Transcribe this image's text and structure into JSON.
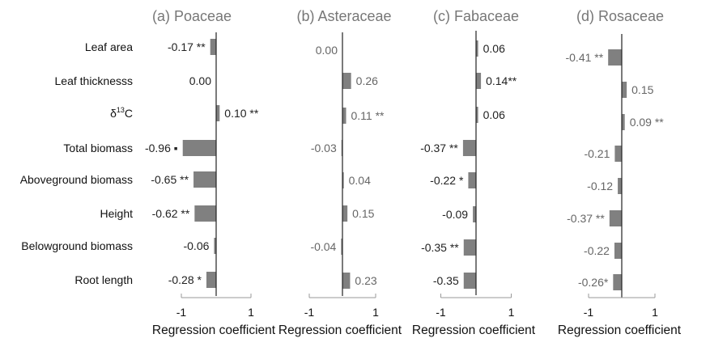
{
  "chart_data": {
    "type": "bar",
    "orientation": "horizontal",
    "categories": [
      "Leaf area",
      "Leaf thicknesss",
      "δ13C",
      "Total biomass",
      "Aboveground biomass",
      "Height",
      "Belowground biomass",
      "Root length"
    ],
    "category_display": {
      "δ13C": {
        "base": "δ",
        "sup": "13",
        "tail": "C"
      }
    },
    "bar_color": "#808080",
    "panels": [
      {
        "title": "(a) Poaceae",
        "xlabel": "Regression coefficient",
        "xlim": [
          -1,
          1
        ],
        "ticks": [
          "-1",
          "1"
        ],
        "values": [
          -0.17,
          0.0,
          0.1,
          -0.96,
          -0.65,
          -0.62,
          -0.06,
          -0.28
        ],
        "labels": [
          "-0.17 **",
          "0.00",
          "0.10 **",
          "-0.96 ▪",
          "-0.65 **",
          "-0.62 **",
          "-0.06",
          "-0.28 *"
        ]
      },
      {
        "title": "(b) Asteraceae",
        "xlabel": "Regression coefficient",
        "xlim": [
          -1,
          1
        ],
        "ticks": [
          "-1",
          "1"
        ],
        "values": [
          0.0,
          0.26,
          0.11,
          -0.03,
          0.04,
          0.15,
          -0.04,
          0.23
        ],
        "labels": [
          "0.00",
          "0.26",
          "0.11 **",
          "-0.03",
          "0.04",
          "0.15",
          "-0.04",
          "0.23"
        ]
      },
      {
        "title": "(c) Fabaceae",
        "xlabel": "Regression coefficient",
        "xlim": [
          -1,
          1
        ],
        "ticks": [
          "-1",
          "1"
        ],
        "values": [
          0.06,
          0.14,
          0.06,
          -0.37,
          -0.22,
          -0.09,
          -0.35,
          -0.35
        ],
        "labels": [
          "0.06",
          "0.14**",
          "0.06",
          "-0.37 **",
          "-0.22 *",
          "-0.09",
          "-0.35 **",
          "-0.35"
        ]
      },
      {
        "title": "(d) Rosaceae",
        "xlabel": "Regression coefficient",
        "xlim": [
          -1,
          1
        ],
        "ticks": [
          "-1",
          "1"
        ],
        "values": [
          -0.41,
          0.15,
          0.09,
          -0.21,
          -0.12,
          -0.37,
          -0.22,
          -0.26
        ],
        "labels": [
          "-0.41 **",
          "0.15",
          "0.09 **",
          "-0.21",
          "-0.12",
          "-0.37 **",
          "-0.22",
          "-0.26*"
        ]
      }
    ]
  }
}
